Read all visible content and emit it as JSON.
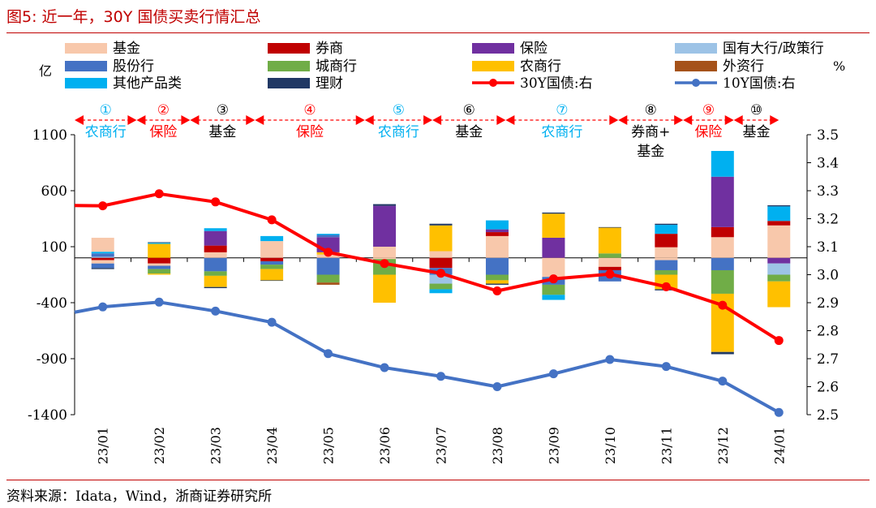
{
  "figure_title": "图5:  近一年，30Y 国债买卖行情汇总",
  "source": "资料来源：Idata，Wind，浙商证券研究所",
  "chart_data": {
    "type": "bar",
    "subtype": "stacked-bar-with-lines",
    "categories": [
      "23/01",
      "23/02",
      "23/03",
      "23/04",
      "23/05",
      "23/06",
      "23/07",
      "23/08",
      "23/09",
      "23/10",
      "23/11",
      "23/12",
      "24/01"
    ],
    "y_left": {
      "unit": "亿",
      "ylim": [
        -1400,
        1100
      ],
      "ticks": [
        1100,
        600,
        100,
        -400,
        -900,
        -1400
      ]
    },
    "y_right": {
      "unit": "%",
      "ylim": [
        2.5,
        3.5
      ],
      "ticks": [
        3.5,
        3.4,
        3.3,
        3.2,
        3.1,
        3.0,
        2.9,
        2.8,
        2.7,
        2.6,
        2.5
      ]
    },
    "legend": [
      {
        "key": "jijin",
        "label": "基金",
        "color": "#f8c8ab",
        "kind": "bar"
      },
      {
        "key": "quanshang",
        "label": "券商",
        "color": "#c00000",
        "kind": "bar"
      },
      {
        "key": "baoxian",
        "label": "保险",
        "color": "#7030a0",
        "kind": "bar"
      },
      {
        "key": "guoyou",
        "label": "国有大行/政策行",
        "color": "#9dc3e6",
        "kind": "bar"
      },
      {
        "key": "gufen",
        "label": "股份行",
        "color": "#4472c4",
        "kind": "bar"
      },
      {
        "key": "chengshang",
        "label": "城商行",
        "color": "#70ad47",
        "kind": "bar"
      },
      {
        "key": "nongshang",
        "label": "农商行",
        "color": "#ffc000",
        "kind": "bar"
      },
      {
        "key": "waizi",
        "label": "外资行",
        "color": "#a5521a",
        "kind": "bar"
      },
      {
        "key": "qita",
        "label": "其他产品类",
        "color": "#00b0f0",
        "kind": "bar"
      },
      {
        "key": "licai",
        "label": "理财",
        "color": "#203864",
        "kind": "bar"
      },
      {
        "key": "y30",
        "label": "30Y国债:右",
        "color": "#ff0000",
        "kind": "line"
      },
      {
        "key": "y10",
        "label": "10Y国债:右",
        "color": "#4472c4",
        "kind": "line"
      }
    ],
    "bars": [
      {
        "pos": [
          [
            "guoyou",
            10
          ],
          [
            "gufen",
            30
          ],
          [
            "qita",
            15
          ],
          [
            "jijin",
            125
          ]
        ],
        "neg": [
          [
            "quanshang",
            -20
          ],
          [
            "jijin",
            -30
          ],
          [
            "gufen",
            -40
          ],
          [
            "licai",
            -10
          ]
        ]
      },
      {
        "pos": [
          [
            "nongshang",
            125
          ],
          [
            "qita",
            10
          ],
          [
            "licai",
            5
          ]
        ],
        "neg": [
          [
            "quanshang",
            -50
          ],
          [
            "jijin",
            -20
          ],
          [
            "gufen",
            -30
          ],
          [
            "chengshang",
            -40
          ],
          [
            "nongshang",
            -10
          ]
        ]
      },
      {
        "pos": [
          [
            "jijin",
            50
          ],
          [
            "quanshang",
            60
          ],
          [
            "baoxian",
            130
          ],
          [
            "qita",
            25
          ]
        ],
        "neg": [
          [
            "gufen",
            -120
          ],
          [
            "chengshang",
            -40
          ],
          [
            "nongshang",
            -100
          ],
          [
            "licai",
            -10
          ]
        ]
      },
      {
        "pos": [
          [
            "jijin",
            150
          ],
          [
            "qita",
            45
          ]
        ],
        "neg": [
          [
            "quanshang",
            -30
          ],
          [
            "gufen",
            -30
          ],
          [
            "chengshang",
            -40
          ],
          [
            "nongshang",
            -100
          ],
          [
            "licai",
            -5
          ]
        ]
      },
      {
        "pos": [
          [
            "jijin",
            30
          ],
          [
            "nongshang",
            20
          ],
          [
            "baoxian",
            135
          ],
          [
            "gufen",
            20
          ],
          [
            "qita",
            10
          ]
        ],
        "neg": [
          [
            "gufen",
            -150
          ],
          [
            "chengshang",
            -70
          ],
          [
            "waizi",
            -20
          ]
        ]
      },
      {
        "pos": [
          [
            "jijin",
            100
          ],
          [
            "baoxian",
            365
          ],
          [
            "licai",
            15
          ]
        ],
        "neg": [
          [
            "jijin",
            -10
          ],
          [
            "chengshang",
            -140
          ],
          [
            "nongshang",
            -250
          ]
        ]
      },
      {
        "pos": [
          [
            "jijin",
            60
          ],
          [
            "nongshang",
            230
          ],
          [
            "licai",
            15
          ]
        ],
        "neg": [
          [
            "quanshang",
            -90
          ],
          [
            "gufen",
            -60
          ],
          [
            "guoyou",
            -80
          ],
          [
            "chengshang",
            -50
          ],
          [
            "qita",
            -35
          ]
        ]
      },
      {
        "pos": [
          [
            "jijin",
            195
          ],
          [
            "quanshang",
            35
          ],
          [
            "baoxian",
            25
          ],
          [
            "qita",
            80
          ]
        ],
        "neg": [
          [
            "gufen",
            -150
          ],
          [
            "chengshang",
            -50
          ],
          [
            "nongshang",
            -30
          ],
          [
            "licai",
            -10
          ]
        ]
      },
      {
        "pos": [
          [
            "baoxian",
            180
          ],
          [
            "nongshang",
            215
          ],
          [
            "licai",
            10
          ]
        ],
        "neg": [
          [
            "jijin",
            -170
          ],
          [
            "gufen",
            -70
          ],
          [
            "chengshang",
            -90
          ],
          [
            "qita",
            -45
          ]
        ]
      },
      {
        "pos": [
          [
            "chengshang",
            40
          ],
          [
            "nongshang",
            230
          ],
          [
            "licai",
            5
          ]
        ],
        "neg": [
          [
            "jijin",
            -80
          ],
          [
            "quanshang",
            -30
          ],
          [
            "gufen",
            -100
          ]
        ]
      },
      {
        "pos": [
          [
            "jijin",
            95
          ],
          [
            "quanshang",
            120
          ],
          [
            "qita",
            80
          ],
          [
            "licai",
            10
          ]
        ],
        "neg": [
          [
            "jijin",
            -20
          ],
          [
            "gufen",
            -90
          ],
          [
            "chengshang",
            -40
          ],
          [
            "nongshang",
            -130
          ],
          [
            "licai",
            -10
          ]
        ]
      },
      {
        "pos": [
          [
            "jijin",
            185
          ],
          [
            "quanshang",
            90
          ],
          [
            "baoxian",
            450
          ],
          [
            "qita",
            230
          ]
        ],
        "neg": [
          [
            "gufen",
            -110
          ],
          [
            "chengshang",
            -210
          ],
          [
            "nongshang",
            -520
          ],
          [
            "licai",
            -20
          ]
        ]
      },
      {
        "pos": [
          [
            "jijin",
            290
          ],
          [
            "quanshang",
            40
          ],
          [
            "qita",
            130
          ],
          [
            "licai",
            10
          ]
        ],
        "neg": [
          [
            "baoxian",
            -50
          ],
          [
            "guoyou",
            -100
          ],
          [
            "chengshang",
            -60
          ],
          [
            "nongshang",
            -230
          ]
        ]
      }
    ],
    "series": [
      {
        "name": "30Y国债:右",
        "values": [
          3.246,
          3.289,
          3.26,
          3.196,
          3.08,
          3.04,
          3.005,
          2.942,
          2.985,
          3.002,
          2.957,
          2.891,
          2.765
        ]
      },
      {
        "name": "10Y国债:右",
        "values": [
          2.885,
          2.902,
          2.87,
          2.83,
          2.718,
          2.668,
          2.637,
          2.6,
          2.646,
          2.697,
          2.672,
          2.62,
          2.508
        ]
      }
    ],
    "series_left_edge": {
      "30Y国债:右": 3.247,
      "10Y国债:右": 2.866
    },
    "periods": [
      {
        "num": "①",
        "label": "农商行",
        "color": "#00b0f0",
        "from": 0,
        "to": 1.1
      },
      {
        "num": "②",
        "label": "保险",
        "color": "#ff0000",
        "from": 1.1,
        "to": 2.05
      },
      {
        "num": "③",
        "label": "基金",
        "color": "#000000",
        "from": 2.05,
        "to": 3.2
      },
      {
        "num": "④",
        "label": "保险",
        "color": "#ff0000",
        "from": 3.2,
        "to": 5.15
      },
      {
        "num": "⑤",
        "label": "农商行",
        "color": "#00b0f0",
        "from": 5.15,
        "to": 6.35
      },
      {
        "num": "⑥",
        "label": "基金",
        "color": "#000000",
        "from": 6.35,
        "to": 7.65
      },
      {
        "num": "⑦",
        "label": "农商行",
        "color": "#00b0f0",
        "from": 7.65,
        "to": 9.65
      },
      {
        "num": "⑧",
        "label": "券商+",
        "label2": "基金",
        "color": "#000000",
        "from": 9.65,
        "to": 10.8
      },
      {
        "num": "⑨",
        "label": "保险",
        "color": "#ff0000",
        "from": 10.8,
        "to": 11.7
      },
      {
        "num": "⑩",
        "label": "基金",
        "color": "#000000",
        "from": 11.7,
        "to": 12.5
      }
    ]
  }
}
